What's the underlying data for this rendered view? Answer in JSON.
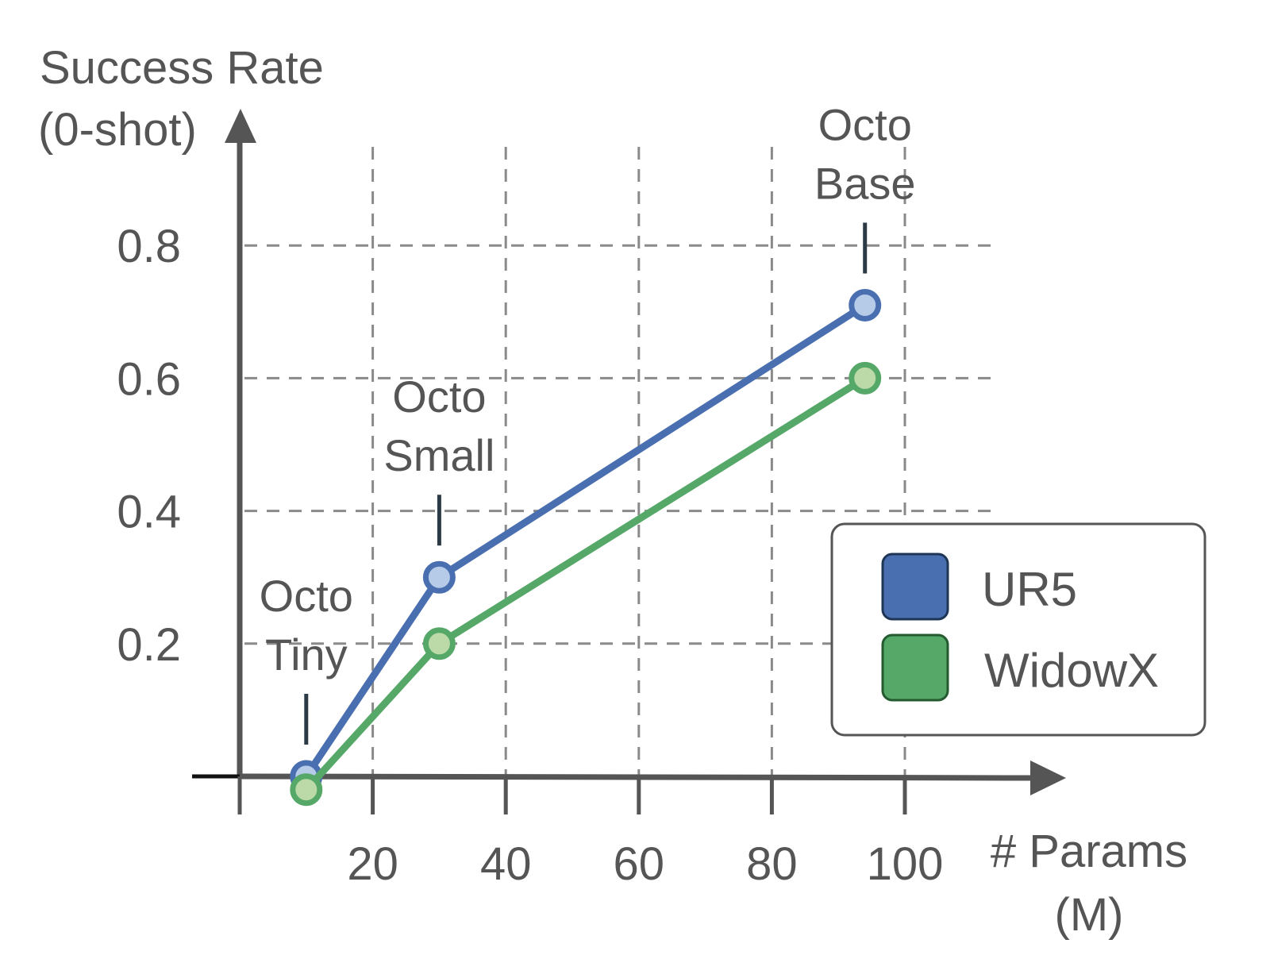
{
  "chart_data": {
    "type": "line",
    "ylabel_lines": [
      "Success Rate",
      "(0-shot)"
    ],
    "xlabel_lines": [
      "# Params",
      "(M)"
    ],
    "xlim": [
      0,
      110
    ],
    "ylim": [
      0,
      0.8
    ],
    "x_ticks": [
      20,
      40,
      60,
      80,
      100
    ],
    "x_tick_labels": [
      "20",
      "40",
      "60",
      "80",
      "100"
    ],
    "y_ticks": [
      0.2,
      0.4,
      0.6,
      0.8
    ],
    "y_tick_labels": [
      "0.2",
      "0.4",
      "0.6",
      "0.8"
    ],
    "grid": true,
    "legend_position": "bottom-right",
    "series": [
      {
        "name": "UR5",
        "color": "#4a6fb0",
        "marker_fill": "#b6cbe8",
        "x": [
          10,
          30,
          94
        ],
        "y": [
          0.0,
          0.3,
          0.71
        ]
      },
      {
        "name": "WidowX",
        "color": "#55a868",
        "marker_fill": "#bcd9a8",
        "x": [
          10,
          30,
          94
        ],
        "y": [
          -0.02,
          0.2,
          0.6
        ]
      }
    ],
    "annotations": [
      {
        "lines": [
          "Octo",
          "Tiny"
        ],
        "x": 10
      },
      {
        "lines": [
          "Octo",
          "Small"
        ],
        "x": 30
      },
      {
        "lines": [
          "Octo",
          "Base"
        ],
        "x": 94
      }
    ]
  }
}
